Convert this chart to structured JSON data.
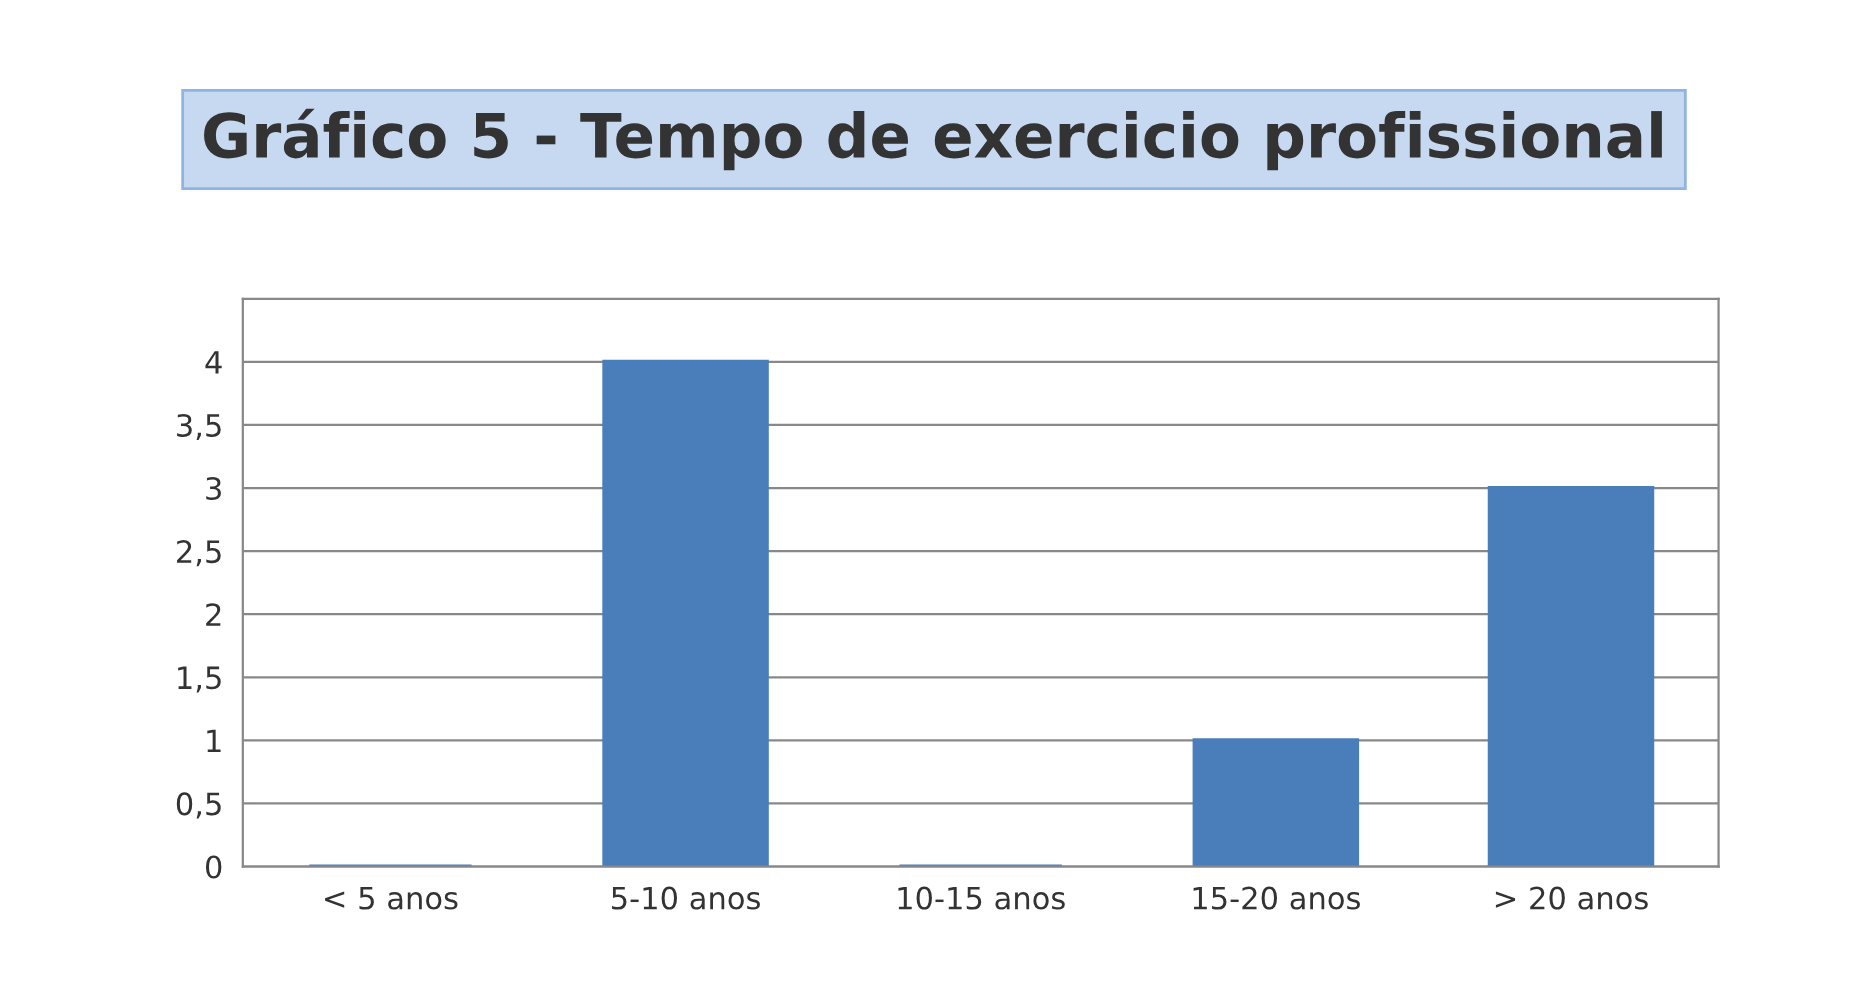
{
  "chart_data": {
    "type": "bar",
    "title": "Gráfico 5 - Tempo de exercicio profissional",
    "categories": [
      "< 5 anos",
      "5-10 anos",
      "10-15 anos",
      "15-20 anos",
      "> 20 anos"
    ],
    "values": [
      0,
      4,
      0,
      1,
      3
    ],
    "color": "#4a7ebb",
    "ylim": [
      0,
      4.5
    ],
    "yticks": [
      0,
      {
        "value": 0.5,
        "label": "0,5"
      },
      1,
      {
        "value": 1.5,
        "label": "1,5"
      },
      2,
      {
        "value": 2.5,
        "label": "2,5"
      },
      3,
      {
        "value": 3.5,
        "label": "3,5"
      },
      4,
      {
        "value": 4.5,
        "label": null
      }
    ],
    "grid": "y"
  }
}
